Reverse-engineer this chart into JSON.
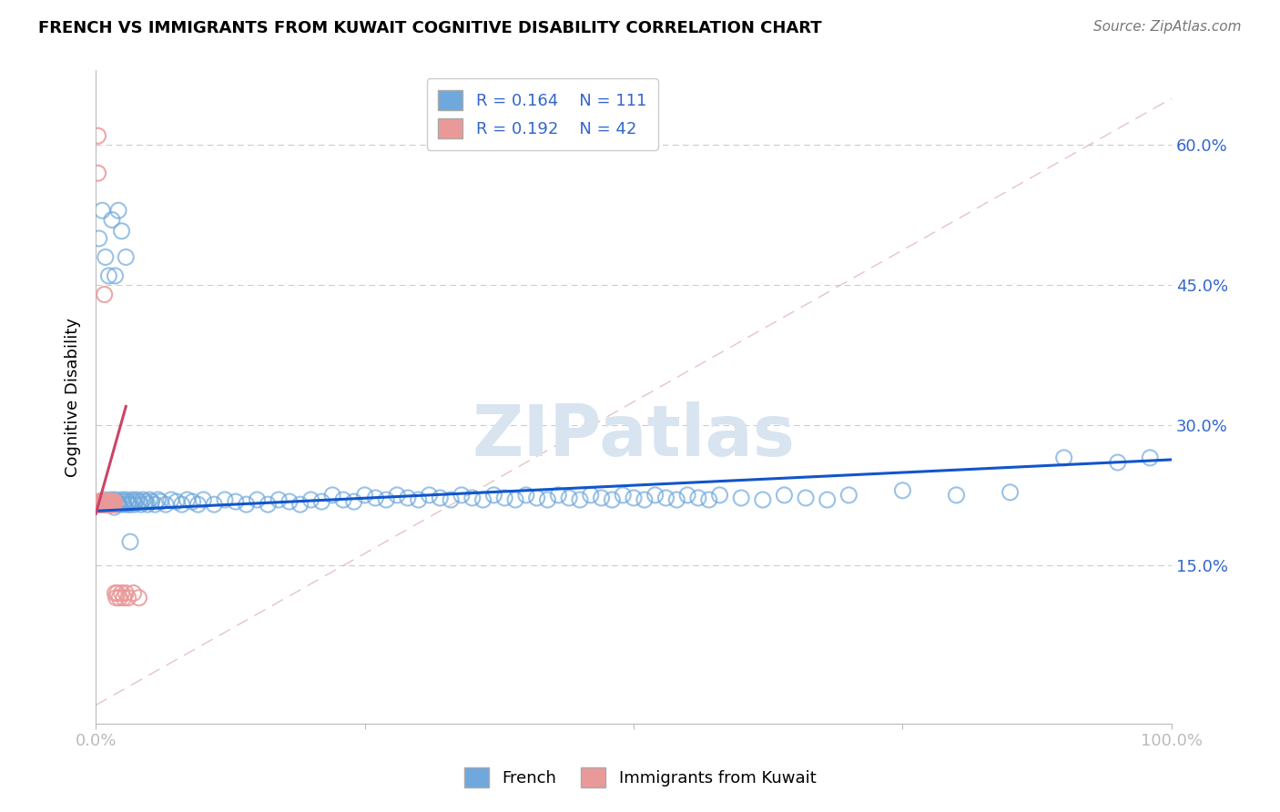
{
  "title": "FRENCH VS IMMIGRANTS FROM KUWAIT COGNITIVE DISABILITY CORRELATION CHART",
  "source": "Source: ZipAtlas.com",
  "ylabel": "Cognitive Disability",
  "xlim": [
    0.0,
    1.0
  ],
  "ylim": [
    -0.02,
    0.68
  ],
  "legend_r1": "R = 0.164",
  "legend_n1": "N = 111",
  "legend_r2": "R = 0.192",
  "legend_n2": "N = 42",
  "blue_color": "#6FA8DC",
  "pink_color": "#EA9999",
  "blue_line_color": "#1155CC",
  "pink_line_color": "#CC4466",
  "diag_line_color": "#DDAAAA",
  "grid_color": "#CCCCCC",
  "watermark": "ZIPatlas",
  "french_x": [
    0.005,
    0.008,
    0.01,
    0.012,
    0.014,
    0.015,
    0.016,
    0.017,
    0.018,
    0.02,
    0.02,
    0.022,
    0.024,
    0.025,
    0.026,
    0.028,
    0.03,
    0.03,
    0.032,
    0.034,
    0.035,
    0.036,
    0.038,
    0.04,
    0.042,
    0.044,
    0.046,
    0.048,
    0.05,
    0.052,
    0.055,
    0.058,
    0.06,
    0.065,
    0.07,
    0.075,
    0.08,
    0.085,
    0.09,
    0.095,
    0.1,
    0.11,
    0.12,
    0.13,
    0.14,
    0.15,
    0.16,
    0.17,
    0.18,
    0.19,
    0.2,
    0.21,
    0.22,
    0.23,
    0.24,
    0.25,
    0.26,
    0.27,
    0.28,
    0.29,
    0.3,
    0.31,
    0.32,
    0.33,
    0.34,
    0.35,
    0.36,
    0.37,
    0.38,
    0.39,
    0.4,
    0.41,
    0.42,
    0.43,
    0.44,
    0.45,
    0.46,
    0.47,
    0.48,
    0.49,
    0.5,
    0.51,
    0.52,
    0.53,
    0.54,
    0.55,
    0.56,
    0.57,
    0.58,
    0.6,
    0.62,
    0.64,
    0.66,
    0.68,
    0.7,
    0.75,
    0.8,
    0.85,
    0.9,
    0.95,
    0.98,
    0.003,
    0.006,
    0.009,
    0.012,
    0.015,
    0.018,
    0.021,
    0.024,
    0.028,
    0.032
  ],
  "french_y": [
    0.215,
    0.22,
    0.218,
    0.215,
    0.22,
    0.215,
    0.218,
    0.212,
    0.22,
    0.215,
    0.218,
    0.215,
    0.22,
    0.218,
    0.215,
    0.22,
    0.215,
    0.218,
    0.215,
    0.22,
    0.218,
    0.215,
    0.22,
    0.218,
    0.215,
    0.22,
    0.218,
    0.215,
    0.22,
    0.218,
    0.215,
    0.22,
    0.218,
    0.215,
    0.22,
    0.218,
    0.215,
    0.22,
    0.218,
    0.215,
    0.22,
    0.215,
    0.22,
    0.218,
    0.215,
    0.22,
    0.215,
    0.22,
    0.218,
    0.215,
    0.22,
    0.218,
    0.225,
    0.22,
    0.218,
    0.225,
    0.222,
    0.22,
    0.225,
    0.222,
    0.22,
    0.225,
    0.222,
    0.22,
    0.225,
    0.222,
    0.22,
    0.225,
    0.222,
    0.22,
    0.225,
    0.222,
    0.22,
    0.225,
    0.222,
    0.22,
    0.225,
    0.222,
    0.22,
    0.225,
    0.222,
    0.22,
    0.225,
    0.222,
    0.22,
    0.225,
    0.222,
    0.22,
    0.225,
    0.222,
    0.22,
    0.225,
    0.222,
    0.22,
    0.225,
    0.23,
    0.225,
    0.228,
    0.265,
    0.26,
    0.265,
    0.5,
    0.53,
    0.48,
    0.46,
    0.52,
    0.46,
    0.53,
    0.508,
    0.48,
    0.175
  ],
  "kuwait_x": [
    0.002,
    0.002,
    0.003,
    0.003,
    0.004,
    0.004,
    0.005,
    0.005,
    0.006,
    0.006,
    0.007,
    0.007,
    0.008,
    0.008,
    0.009,
    0.009,
    0.01,
    0.01,
    0.011,
    0.011,
    0.012,
    0.012,
    0.013,
    0.013,
    0.014,
    0.014,
    0.015,
    0.015,
    0.016,
    0.016,
    0.017,
    0.017,
    0.018,
    0.019,
    0.02,
    0.022,
    0.024,
    0.026,
    0.028,
    0.03,
    0.035,
    0.04
  ],
  "kuwait_y": [
    0.61,
    0.57,
    0.215,
    0.218,
    0.215,
    0.218,
    0.215,
    0.218,
    0.215,
    0.218,
    0.215,
    0.218,
    0.44,
    0.215,
    0.218,
    0.215,
    0.218,
    0.215,
    0.215,
    0.218,
    0.215,
    0.218,
    0.215,
    0.218,
    0.215,
    0.218,
    0.215,
    0.218,
    0.215,
    0.218,
    0.215,
    0.218,
    0.12,
    0.115,
    0.12,
    0.115,
    0.12,
    0.115,
    0.12,
    0.115,
    0.12,
    0.115
  ],
  "blue_line_x": [
    0.0,
    1.0
  ],
  "blue_line_y": [
    0.208,
    0.263
  ],
  "pink_line_x": [
    0.0,
    0.028
  ],
  "pink_line_y": [
    0.205,
    0.32
  ],
  "diag_line_x": [
    0.0,
    1.0
  ],
  "diag_line_y": [
    0.0,
    0.65
  ]
}
